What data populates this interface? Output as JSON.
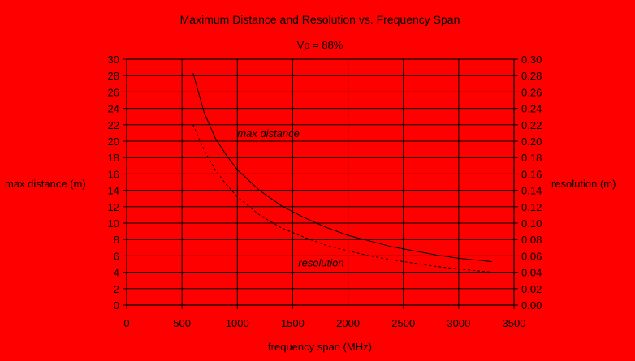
{
  "chart_data": {
    "type": "line",
    "title": "Maximum Distance and Resolution vs. Frequency Span",
    "subtitle": "Vp =  88%",
    "xlabel": "frequency span (MHz)",
    "ylabel_left": "max  distance (m)",
    "ylabel_right": "resolution (m)",
    "xlim": [
      0,
      3500
    ],
    "ylim_left": [
      0,
      30
    ],
    "ylim_right": [
      0,
      0.3
    ],
    "x_ticks": [
      0,
      500,
      1000,
      1500,
      2000,
      2500,
      3000,
      3500
    ],
    "y_ticks_left": [
      0,
      2,
      4,
      6,
      8,
      10,
      12,
      14,
      16,
      18,
      20,
      22,
      24,
      26,
      28,
      30
    ],
    "y_ticks_right": [
      "0.00",
      "0.02",
      "0.04",
      "0.06",
      "0.08",
      "0.10",
      "0.12",
      "0.14",
      "0.16",
      "0.18",
      "0.20",
      "0.22",
      "0.24",
      "0.26",
      "0.28",
      "0.30"
    ],
    "grid": true,
    "series": [
      {
        "name": "max distance",
        "axis": "left",
        "style": "solid",
        "x": [
          600,
          700,
          800,
          900,
          1000,
          1200,
          1400,
          1600,
          1800,
          2000,
          2200,
          2400,
          2600,
          2800,
          3000,
          3300
        ],
        "y": [
          28.3,
          23.5,
          20.4,
          18.3,
          16.5,
          14.0,
          12.1,
          10.7,
          9.5,
          8.5,
          7.8,
          7.1,
          6.6,
          6.1,
          5.7,
          5.3
        ]
      },
      {
        "name": "resolution",
        "axis": "right",
        "style": "dashed",
        "x": [
          600,
          700,
          800,
          900,
          1000,
          1200,
          1400,
          1600,
          1800,
          2000,
          2200,
          2400,
          2600,
          2800,
          3000,
          3300
        ],
        "y": [
          0.22,
          0.189,
          0.165,
          0.147,
          0.132,
          0.11,
          0.094,
          0.083,
          0.073,
          0.066,
          0.06,
          0.055,
          0.051,
          0.047,
          0.044,
          0.04
        ]
      }
    ],
    "annotations": [
      {
        "text": "max distance",
        "x": 1000,
        "y": 20.5,
        "axis": "left"
      },
      {
        "text": "resolution",
        "x": 1550,
        "y": 4.7,
        "axis": "left"
      }
    ],
    "colors": {
      "background": "#ff0000",
      "ink": "#000000"
    }
  }
}
